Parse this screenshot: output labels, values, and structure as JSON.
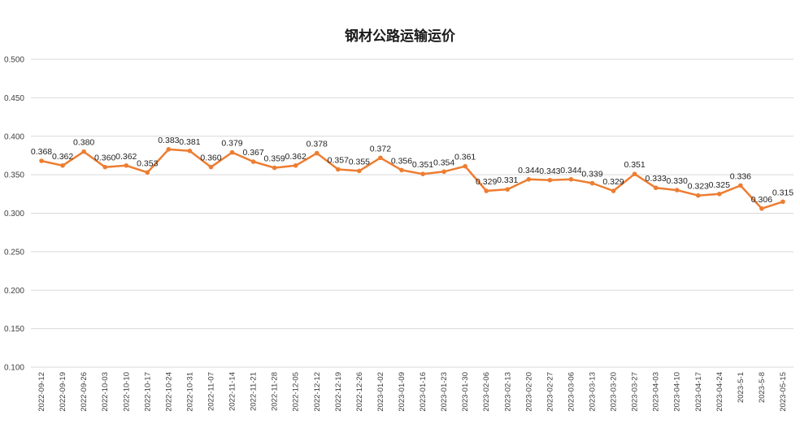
{
  "chart_data": {
    "type": "line",
    "title": "钢材公路运输运价",
    "xlabel": "",
    "ylabel": "",
    "ylim": [
      0.1,
      0.5
    ],
    "yticks": [
      "0.100",
      "0.150",
      "0.200",
      "0.250",
      "0.300",
      "0.350",
      "0.400",
      "0.450",
      "0.500"
    ],
    "grid": true,
    "legend": "none",
    "categories": [
      "2022-09-12",
      "2022-09-19",
      "2022-09-26",
      "2022-10-03",
      "2022-10-10",
      "2022-10-17",
      "2022-10-24",
      "2022-10-31",
      "2022-11-07",
      "2022-11-14",
      "2022-11-21",
      "2022-11-28",
      "2022-12-05",
      "2022-12-12",
      "2022-12-19",
      "2022-12-26",
      "2023-01-02",
      "2023-01-09",
      "2023-01-16",
      "2023-01-23",
      "2023-01-30",
      "2023-02-06",
      "2023-02-13",
      "2023-02-20",
      "2023-02-27",
      "2023-03-06",
      "2023-03-13",
      "2023-03-20",
      "2023-03-27",
      "2023-04-03",
      "2023-04-10",
      "2023-04-17",
      "2023-04-24",
      "2023-5-1",
      "2023-5-8",
      "2023-05-15"
    ],
    "series": [
      {
        "name": "钢材公路运输运价",
        "color": "#ED7D31",
        "values": [
          0.368,
          0.362,
          0.38,
          0.36,
          0.362,
          0.353,
          0.383,
          0.381,
          0.36,
          0.379,
          0.367,
          0.359,
          0.362,
          0.378,
          0.357,
          0.355,
          0.372,
          0.356,
          0.351,
          0.354,
          0.361,
          0.329,
          0.331,
          0.344,
          0.343,
          0.344,
          0.339,
          0.329,
          0.351,
          0.333,
          0.33,
          0.323,
          0.325,
          0.336,
          0.306,
          0.315
        ],
        "labels": [
          "0.368",
          "0.362",
          "0.380",
          "0.360",
          "0.362",
          "0.353",
          "0.383",
          "0.381",
          "0.360",
          "0.379",
          "0.367",
          "0.359",
          "0.362",
          "0.378",
          "0.357",
          "0.355",
          "0.372",
          "0.356",
          "0.351",
          "0.354",
          "0.361",
          "0.329",
          "0.331",
          "0.344",
          "0.343",
          "0.344",
          "0.339",
          "0.329",
          "0.351",
          "0.333",
          "0.330",
          "0.323",
          "0.325",
          "0.336",
          "0.306",
          "0.315"
        ]
      }
    ]
  }
}
